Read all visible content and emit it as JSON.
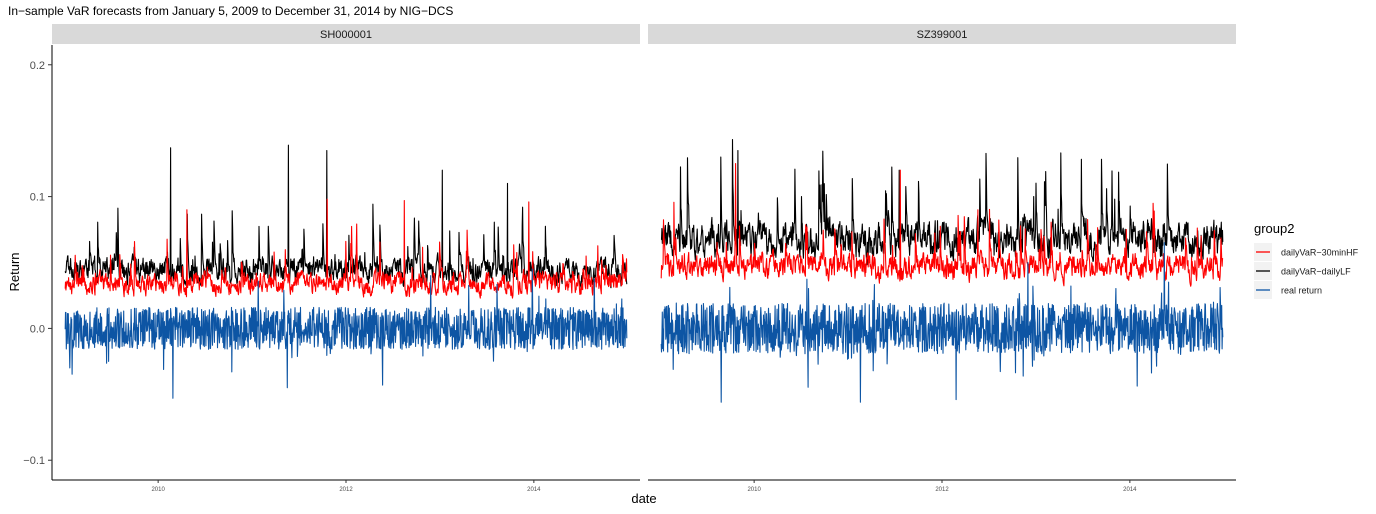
{
  "chart_data": {
    "type": "line",
    "title": "In−sample VaR forecasts from January 5, 2009 to December 31, 2014 by NIG−DCS",
    "xlabel": "date",
    "ylabel": "Return",
    "ylim": [
      -0.115,
      0.215
    ],
    "yticks": [
      -0.1,
      0.0,
      0.1,
      0.2
    ],
    "ytick_labels": [
      "−0.1",
      "0.0",
      "0.1",
      "0.2"
    ],
    "xlim": [
      2008.87,
      2015.13
    ],
    "xticks": [
      2010,
      2012,
      2014
    ],
    "xtick_labels": [
      "2010",
      "2012",
      "2014"
    ],
    "grid": false,
    "legend": {
      "title": "group2",
      "position": "right",
      "entries": [
        "dailyVaR−30minHF",
        "dailyVaR−dailyLF",
        "real return"
      ]
    },
    "colors": {
      "dailyVaR-30minHF": "#ff0000",
      "dailyVaR-dailyLF": "#000000",
      "real return": "#0d55a4",
      "strip": "#d9d9d9"
    },
    "panels": [
      {
        "strip": "SH000001",
        "series_stats": [
          {
            "name": "dailyVaR−30minHF",
            "baseline": 0.031,
            "jitter": 0.006,
            "spikes": [
              0.09,
              0.098,
              0.097,
              0.096
            ]
          },
          {
            "name": "dailyVaR−dailyLF",
            "baseline": 0.041,
            "jitter": 0.007,
            "spikes": [
              0.137,
              0.139,
              0.135,
              0.12,
              0.11
            ]
          },
          {
            "name": "real return",
            "baseline": 0.0,
            "jitter": 0.01,
            "spikes": [
              -0.053,
              -0.045,
              -0.043,
              0.04,
              0.045
            ]
          }
        ]
      },
      {
        "strip": "SZ399001",
        "series_stats": [
          {
            "name": "dailyVaR−30minHF",
            "baseline": 0.043,
            "jitter": 0.007,
            "spikes": [
              0.125,
              0.12,
              0.09,
              0.075
            ]
          },
          {
            "name": "dailyVaR−dailyLF",
            "baseline": 0.063,
            "jitter": 0.01,
            "spikes": [
              0.135,
              0.12,
              0.1,
              0.098
            ]
          },
          {
            "name": "real return",
            "baseline": 0.0,
            "jitter": 0.012,
            "spikes": [
              -0.056,
              -0.056,
              -0.054,
              0.05,
              0.065
            ]
          }
        ]
      }
    ]
  }
}
